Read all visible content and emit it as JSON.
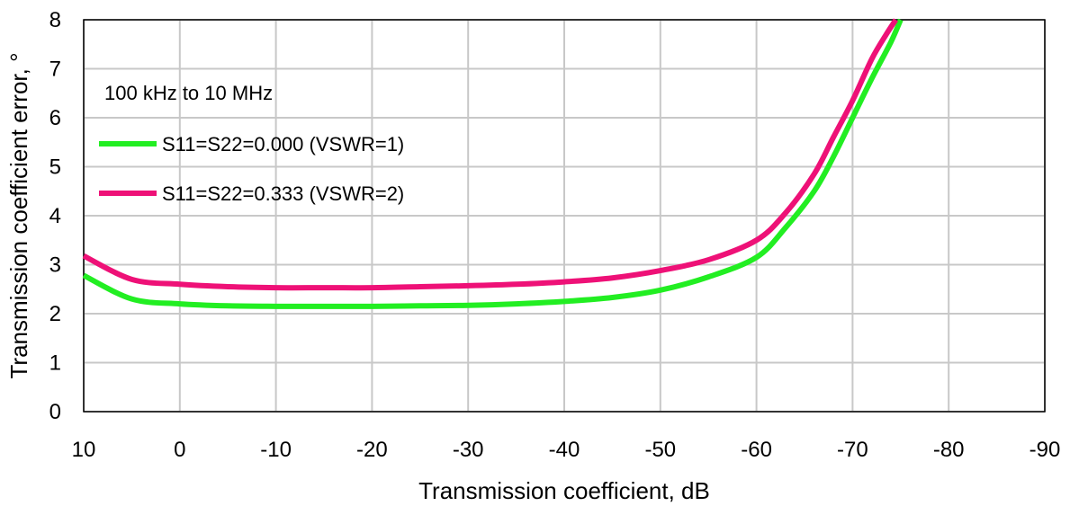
{
  "chart_data": {
    "type": "line",
    "title": "",
    "xlabel": "Transmission coefficient, dB",
    "ylabel": "Transmission coefficient error, °",
    "xlim": [
      10,
      -90
    ],
    "ylim": [
      0,
      8
    ],
    "x_ticks": [
      10,
      0,
      -10,
      -20,
      -30,
      -40,
      -50,
      -60,
      -70,
      -80,
      -90
    ],
    "y_ticks": [
      0,
      1,
      2,
      3,
      4,
      5,
      6,
      7,
      8
    ],
    "grid": true,
    "legend_placement": "top-left",
    "annotation": "100 kHz to 10 MHz",
    "colors": {
      "s1": "#22ee22",
      "s2": "#ee1177"
    },
    "series": [
      {
        "name": "S11=S22=0.000 (VSWR=1)",
        "x": [
          10,
          5,
          0,
          -5,
          -10,
          -15,
          -20,
          -25,
          -30,
          -35,
          -40,
          -45,
          -50,
          -55,
          -60,
          -63,
          -66,
          -68,
          -70,
          -72,
          -74,
          -75
        ],
        "y": [
          2.78,
          2.3,
          2.2,
          2.16,
          2.15,
          2.15,
          2.15,
          2.16,
          2.17,
          2.2,
          2.25,
          2.33,
          2.48,
          2.75,
          3.15,
          3.75,
          4.5,
          5.2,
          6.0,
          6.8,
          7.55,
          8.0
        ]
      },
      {
        "name": "S11=S22=0.333 (VSWR=2)",
        "x": [
          10,
          5,
          0,
          -5,
          -10,
          -15,
          -20,
          -25,
          -30,
          -35,
          -40,
          -45,
          -50,
          -55,
          -60,
          -63,
          -66,
          -68,
          -70,
          -72,
          -73.5,
          -74.5
        ],
        "y": [
          3.18,
          2.7,
          2.6,
          2.55,
          2.53,
          2.53,
          2.53,
          2.55,
          2.57,
          2.6,
          2.65,
          2.73,
          2.88,
          3.1,
          3.5,
          4.05,
          4.85,
          5.6,
          6.35,
          7.2,
          7.7,
          8.0
        ]
      }
    ]
  }
}
